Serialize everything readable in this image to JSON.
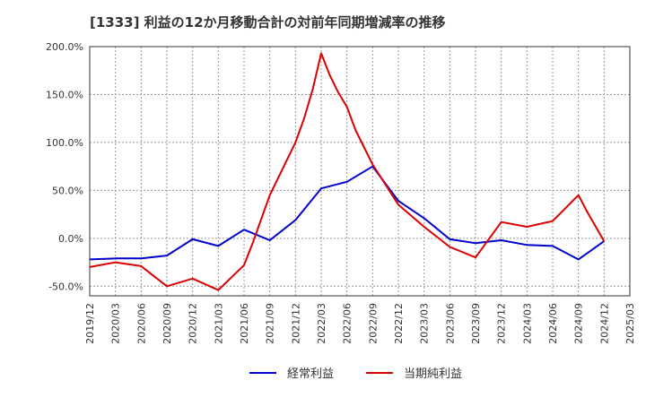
{
  "chart_data": {
    "type": "line",
    "title": "[1333]  利益の12か月移動合計の対前年同期増減率の推移",
    "xlabel": "",
    "ylabel": "",
    "ylim": [
      -60,
      200
    ],
    "yticks": [
      -50,
      0,
      50,
      100,
      150,
      200
    ],
    "ytick_labels": [
      "-50.0%",
      "0.0%",
      "50.0%",
      "100.0%",
      "150.0%",
      "200.0%"
    ],
    "xlim": [
      "2019/12",
      "2025/03"
    ],
    "x_tick_labels": [
      "2019/12",
      "2020/03",
      "2020/06",
      "2020/09",
      "2020/12",
      "2021/03",
      "2021/06",
      "2021/09",
      "2021/12",
      "2022/03",
      "2022/06",
      "2022/09",
      "2022/12",
      "2023/03",
      "2023/06",
      "2023/09",
      "2023/12",
      "2024/03",
      "2024/06",
      "2024/09",
      "2024/12",
      "2025/03"
    ],
    "grid": true,
    "legend_position": "bottom",
    "series": [
      {
        "name": "経常利益",
        "color": "#0000cc",
        "points": [
          [
            "2019/12",
            -22
          ],
          [
            "2020/03",
            -21
          ],
          [
            "2020/06",
            -21
          ],
          [
            "2020/09",
            -18
          ],
          [
            "2020/12",
            -1
          ],
          [
            "2021/03",
            -8
          ],
          [
            "2021/06",
            9
          ],
          [
            "2021/09",
            -2
          ],
          [
            "2021/12",
            19
          ],
          [
            "2022/03",
            52
          ],
          [
            "2022/06",
            59
          ],
          [
            "2022/09",
            75
          ],
          [
            "2022/12",
            39
          ],
          [
            "2023/03",
            21
          ],
          [
            "2023/06",
            -1
          ],
          [
            "2023/09",
            -5
          ],
          [
            "2023/12",
            -2
          ],
          [
            "2024/03",
            -7
          ],
          [
            "2024/06",
            -8
          ],
          [
            "2024/09",
            -22
          ],
          [
            "2024/12",
            -3
          ]
        ]
      },
      {
        "name": "当期純利益",
        "color": "#dd0000",
        "points": [
          [
            "2019/12",
            -30
          ],
          [
            "2020/03",
            -25
          ],
          [
            "2020/06",
            -29
          ],
          [
            "2020/09",
            -50
          ],
          [
            "2020/12",
            -42
          ],
          [
            "2021/03",
            -54
          ],
          [
            "2021/06",
            -28
          ],
          [
            "2021/07",
            -5
          ],
          [
            "2021/09",
            45
          ],
          [
            "2021/12",
            100
          ],
          [
            "2022/01",
            125
          ],
          [
            "2022/02",
            155
          ],
          [
            "2022/03",
            193
          ],
          [
            "2022/04",
            170
          ],
          [
            "2022/05",
            152
          ],
          [
            "2022/06",
            137
          ],
          [
            "2022/07",
            113
          ],
          [
            "2022/09",
            77
          ],
          [
            "2022/12",
            35
          ],
          [
            "2023/03",
            12
          ],
          [
            "2023/06",
            -9
          ],
          [
            "2023/09",
            -20
          ],
          [
            "2023/12",
            17
          ],
          [
            "2024/03",
            12
          ],
          [
            "2024/06",
            18
          ],
          [
            "2024/09",
            45
          ],
          [
            "2024/10",
            28
          ],
          [
            "2024/12",
            -3
          ]
        ]
      }
    ]
  }
}
